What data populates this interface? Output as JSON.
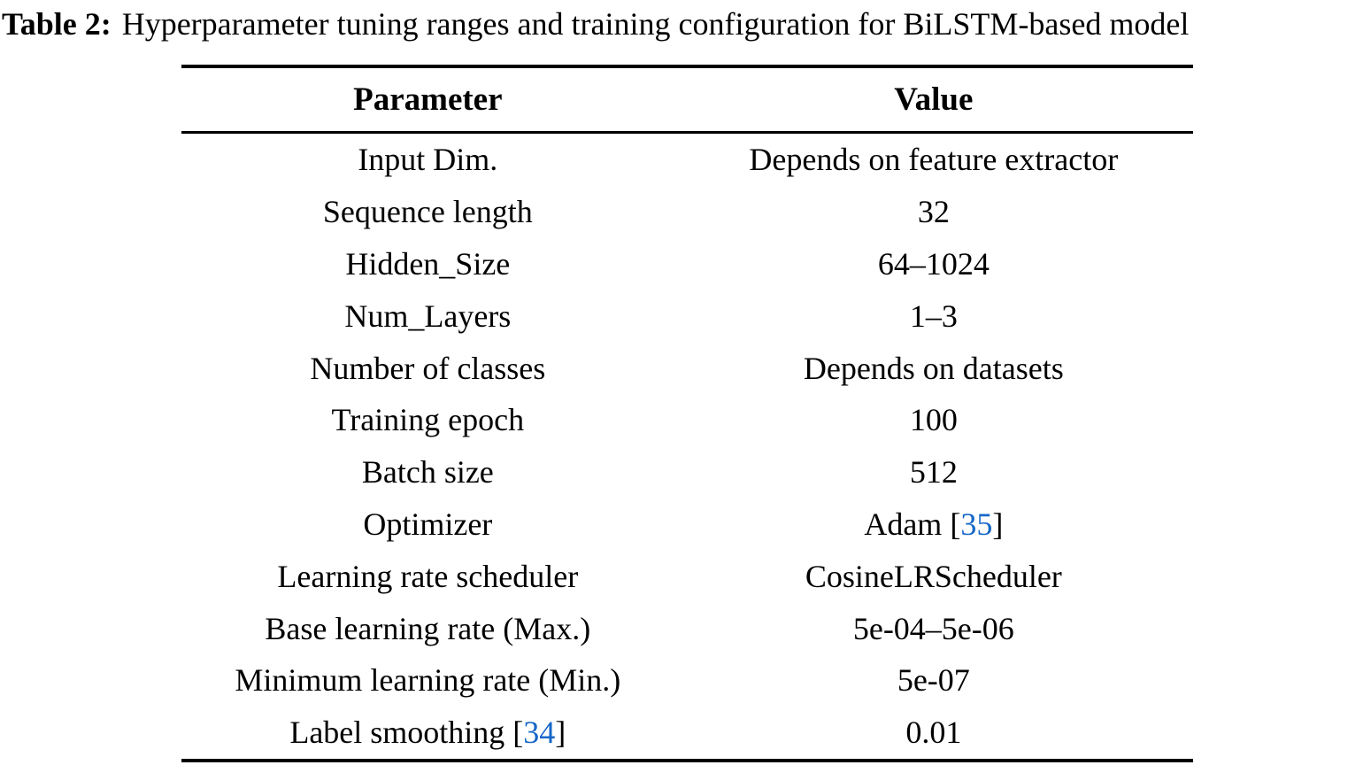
{
  "caption": {
    "label": "Table 2:",
    "text": "Hyperparameter tuning ranges and training configuration for BiLSTM-based model"
  },
  "table": {
    "headers": [
      "Parameter",
      "Value"
    ],
    "rows": [
      {
        "param": "Input Dim.",
        "param_cite": null,
        "value": "Depends on feature extractor",
        "value_cite": null
      },
      {
        "param": "Sequence length",
        "param_cite": null,
        "value": "32",
        "value_cite": null
      },
      {
        "param": "Hidden_Size",
        "param_cite": null,
        "value": "64–1024",
        "value_cite": null
      },
      {
        "param": "Num_Layers",
        "param_cite": null,
        "value": "1–3",
        "value_cite": null
      },
      {
        "param": "Number of classes",
        "param_cite": null,
        "value": "Depends on datasets",
        "value_cite": null
      },
      {
        "param": "Training epoch",
        "param_cite": null,
        "value": "100",
        "value_cite": null
      },
      {
        "param": "Batch size",
        "param_cite": null,
        "value": "512",
        "value_cite": null
      },
      {
        "param": "Optimizer",
        "param_cite": null,
        "value": "Adam",
        "value_cite": "35"
      },
      {
        "param": "Learning rate scheduler",
        "param_cite": null,
        "value": "CosineLRScheduler",
        "value_cite": null
      },
      {
        "param": "Base learning rate (Max.)",
        "param_cite": null,
        "value": "5e-04–5e-06",
        "value_cite": null
      },
      {
        "param": "Minimum learning rate (Min.)",
        "param_cite": null,
        "value": "5e-07",
        "value_cite": null
      },
      {
        "param": "Label smoothing",
        "param_cite": "34",
        "value": "0.01",
        "value_cite": null
      }
    ],
    "colors": {
      "text": "#000000",
      "citation": "#1667c7",
      "rule": "#000000"
    }
  }
}
